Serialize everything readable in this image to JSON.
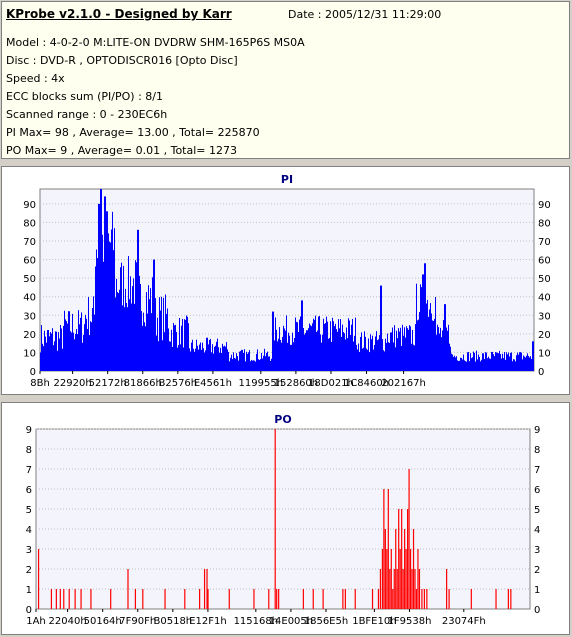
{
  "header": {
    "title": "KProbe v2.1.0 - Designed by Karr",
    "date": "Date : 2005/12/31 11:29:00",
    "lines": [
      "Model : 4-0-2-0 M:LITE-ON DVDRW SHM-165P6S MS0A",
      "Disc : DVD-R , OPTODISCR016 [Opto Disc]",
      "Speed : 4x",
      "ECC blocks sum (PI/PO) : 8/1",
      "Scanned range : 0 - 230EC6h",
      "PI Max= 98 , Average= 13.00 , Total= 225870",
      "PO Max= 9 , Average= 0.01 , Total= 1273"
    ]
  },
  "colors": {
    "pi": "#0000ff",
    "po": "#ff0000",
    "grid": "#c0c0c0",
    "title": "#000080",
    "plot_bg": "#f4f4fc"
  },
  "chart_data": [
    {
      "type": "bar",
      "title": "PI",
      "ylim": [
        0,
        98
      ],
      "yticks": [
        0,
        10,
        20,
        30,
        40,
        50,
        60,
        70,
        80,
        90
      ],
      "xlabels": [
        "8Bh",
        "22920h",
        "52172h",
        "81866h",
        "B2576h",
        "E4561h",
        "119955h",
        "152860h",
        "18D021h",
        "1C8460h",
        "202167h"
      ],
      "xlabel_positions": [
        0.0,
        0.066,
        0.137,
        0.208,
        0.279,
        0.35,
        0.447,
        0.518,
        0.589,
        0.661,
        0.736
      ],
      "segments": [
        {
          "from": 0.0,
          "to": 0.045,
          "min": 10,
          "max": 26
        },
        {
          "from": 0.045,
          "to": 0.09,
          "min": 14,
          "max": 34
        },
        {
          "from": 0.09,
          "to": 0.11,
          "min": 18,
          "max": 42
        },
        {
          "from": 0.11,
          "to": 0.15,
          "min": 50,
          "max": 88
        },
        {
          "from": 0.15,
          "to": 0.2,
          "min": 32,
          "max": 62
        },
        {
          "from": 0.2,
          "to": 0.23,
          "min": 24,
          "max": 54
        },
        {
          "from": 0.23,
          "to": 0.26,
          "min": 16,
          "max": 42
        },
        {
          "from": 0.26,
          "to": 0.3,
          "min": 12,
          "max": 30
        },
        {
          "from": 0.3,
          "to": 0.38,
          "min": 8,
          "max": 18
        },
        {
          "from": 0.38,
          "to": 0.47,
          "min": 5,
          "max": 12
        },
        {
          "from": 0.47,
          "to": 0.64,
          "min": 14,
          "max": 30
        },
        {
          "from": 0.64,
          "to": 0.7,
          "min": 10,
          "max": 22
        },
        {
          "from": 0.7,
          "to": 0.76,
          "min": 12,
          "max": 26
        },
        {
          "from": 0.76,
          "to": 0.8,
          "min": 26,
          "max": 48
        },
        {
          "from": 0.8,
          "to": 0.83,
          "min": 12,
          "max": 28
        },
        {
          "from": 0.83,
          "to": 1.0,
          "min": 5,
          "max": 11
        }
      ],
      "peaks": [
        {
          "pos": 0.122,
          "value": 98
        },
        {
          "pos": 0.131,
          "value": 94
        },
        {
          "pos": 0.118,
          "value": 90
        },
        {
          "pos": 0.135,
          "value": 86
        },
        {
          "pos": 0.197,
          "value": 76
        },
        {
          "pos": 0.229,
          "value": 60
        },
        {
          "pos": 0.47,
          "value": 32
        },
        {
          "pos": 0.53,
          "value": 38
        },
        {
          "pos": 0.69,
          "value": 46
        },
        {
          "pos": 0.775,
          "value": 52
        },
        {
          "pos": 0.779,
          "value": 58
        },
        {
          "pos": 0.818,
          "value": 36
        },
        {
          "pos": 0.997,
          "value": 16
        }
      ]
    },
    {
      "type": "bar",
      "title": "PO",
      "ylim": [
        0,
        9
      ],
      "yticks": [
        0,
        1,
        2,
        3,
        4,
        5,
        6,
        7,
        8,
        9
      ],
      "xlabels": [
        "1Ah",
        "22040h",
        "50164h",
        "7F90Fh",
        "B0518h",
        "E12F1h",
        "115168h",
        "14E005h",
        "1856E5h",
        "1BFE10h",
        "1F9538h",
        "23074Fh"
      ],
      "xlabel_positions": [
        0.0,
        0.064,
        0.135,
        0.206,
        0.277,
        0.348,
        0.445,
        0.516,
        0.587,
        0.685,
        0.756,
        0.866
      ],
      "bars": [
        [
          0.004,
          3
        ],
        [
          0.03,
          1
        ],
        [
          0.04,
          1
        ],
        [
          0.048,
          1
        ],
        [
          0.055,
          1
        ],
        [
          0.066,
          1
        ],
        [
          0.078,
          1
        ],
        [
          0.09,
          1
        ],
        [
          0.11,
          1
        ],
        [
          0.15,
          1
        ],
        [
          0.185,
          2
        ],
        [
          0.2,
          1
        ],
        [
          0.215,
          1
        ],
        [
          0.26,
          1
        ],
        [
          0.3,
          1
        ],
        [
          0.33,
          1
        ],
        [
          0.34,
          2
        ],
        [
          0.345,
          2
        ],
        [
          0.347,
          1
        ],
        [
          0.39,
          1
        ],
        [
          0.44,
          1
        ],
        [
          0.47,
          1
        ],
        [
          0.483,
          9
        ],
        [
          0.486,
          1
        ],
        [
          0.49,
          1
        ],
        [
          0.54,
          1
        ],
        [
          0.56,
          1
        ],
        [
          0.58,
          1
        ],
        [
          0.62,
          1
        ],
        [
          0.625,
          1
        ],
        [
          0.645,
          1
        ],
        [
          0.68,
          1
        ],
        [
          0.692,
          1
        ],
        [
          0.696,
          2
        ],
        [
          0.7,
          3
        ],
        [
          0.703,
          6
        ],
        [
          0.706,
          4
        ],
        [
          0.709,
          3
        ],
        [
          0.712,
          6
        ],
        [
          0.715,
          2
        ],
        [
          0.718,
          3
        ],
        [
          0.721,
          1
        ],
        [
          0.724,
          2
        ],
        [
          0.727,
          4
        ],
        [
          0.73,
          2
        ],
        [
          0.733,
          5
        ],
        [
          0.736,
          3
        ],
        [
          0.739,
          5
        ],
        [
          0.742,
          2
        ],
        [
          0.745,
          4
        ],
        [
          0.748,
          3
        ],
        [
          0.751,
          5
        ],
        [
          0.754,
          7
        ],
        [
          0.757,
          3
        ],
        [
          0.76,
          2
        ],
        [
          0.763,
          4
        ],
        [
          0.766,
          2
        ],
        [
          0.769,
          1
        ],
        [
          0.772,
          3
        ],
        [
          0.775,
          2
        ],
        [
          0.78,
          1
        ],
        [
          0.785,
          1
        ],
        [
          0.79,
          1
        ],
        [
          0.83,
          2
        ],
        [
          0.835,
          1
        ],
        [
          0.88,
          1
        ],
        [
          0.93,
          1
        ],
        [
          0.955,
          1
        ],
        [
          0.96,
          1
        ]
      ]
    }
  ]
}
